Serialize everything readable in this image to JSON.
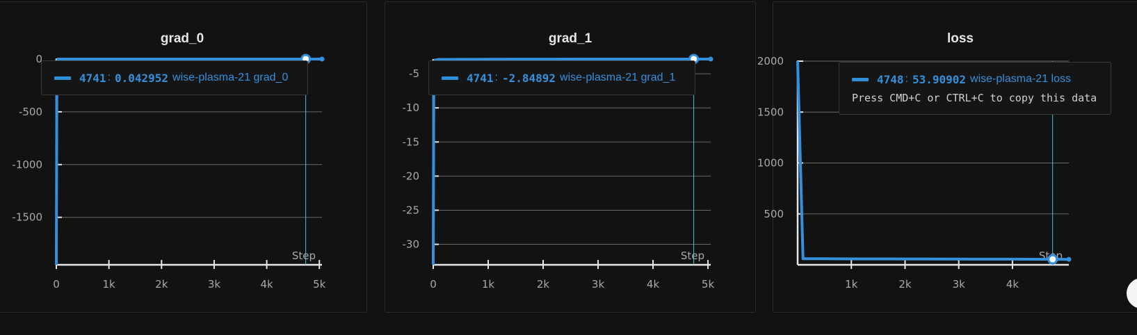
{
  "toolbar": {
    "icons": [
      "drag-handle-icon",
      "clipboard-icon",
      "share-icon",
      "edit-icon",
      "fullscreen-icon",
      "more-icon"
    ]
  },
  "panels": [
    {
      "title": "grad_0",
      "tooltip": {
        "step": "4741",
        "value": "0.042952",
        "run": "wise-plasma-21 grad_0",
        "hint": ""
      }
    },
    {
      "title": "grad_1",
      "tooltip": {
        "step": "4741",
        "value": "-2.84892",
        "run": "wise-plasma-21 grad_1",
        "hint": ""
      }
    },
    {
      "title": "loss",
      "tooltip": {
        "step": "4748",
        "value": "53.90902",
        "run": "wise-plasma-21 loss",
        "hint": "Press CMD+C or CTRL+C to copy this data"
      }
    }
  ],
  "chart_data": [
    {
      "type": "line",
      "title": "grad_0",
      "xlabel": "Step",
      "ylabel": "",
      "xlim": [
        0,
        5050
      ],
      "ylim": [
        -1950,
        0
      ],
      "xticks": [
        "0",
        "1k",
        "2k",
        "3k",
        "4k",
        "5k"
      ],
      "xtick_values": [
        0,
        1000,
        2000,
        3000,
        4000,
        5000
      ],
      "yticks": [
        "0",
        "-500",
        "-1000",
        "-1500"
      ],
      "ytick_values": [
        0,
        -500,
        -1000,
        -1500
      ],
      "hover_step": 4741,
      "hover_value": 0.042952,
      "series": [
        {
          "color": "#3590dc",
          "x": [
            0,
            10,
            30,
            100,
            1000,
            2000,
            3000,
            4000,
            4741,
            5050
          ],
          "y": [
            -1950,
            -60,
            0,
            0,
            0,
            0,
            0,
            0,
            0.042952,
            0
          ]
        }
      ]
    },
    {
      "type": "line",
      "title": "grad_1",
      "xlabel": "Step",
      "ylabel": "",
      "xlim": [
        0,
        5050
      ],
      "ylim": [
        -33,
        -2.85
      ],
      "xticks": [
        "0",
        "1k",
        "2k",
        "3k",
        "4k",
        "5k"
      ],
      "xtick_values": [
        0,
        1000,
        2000,
        3000,
        4000,
        5000
      ],
      "yticks": [
        "-5",
        "-10",
        "-15",
        "-20",
        "-25",
        "-30"
      ],
      "ytick_values": [
        -5,
        -10,
        -15,
        -20,
        -25,
        -30
      ],
      "hover_step": 4741,
      "hover_value": -2.84892,
      "series": [
        {
          "color": "#3590dc",
          "x": [
            0,
            10,
            30,
            100,
            1000,
            2000,
            3000,
            4000,
            4741,
            5050
          ],
          "y": [
            -33,
            -5,
            -3,
            -2.9,
            -2.87,
            -2.86,
            -2.855,
            -2.85,
            -2.84892,
            -2.848
          ]
        }
      ]
    },
    {
      "type": "line",
      "title": "loss",
      "xlabel": "Step",
      "ylabel": "",
      "xlim": [
        0,
        5050
      ],
      "ylim": [
        0,
        2000
      ],
      "xticks": [
        "1k",
        "2k",
        "3k",
        "4k"
      ],
      "xtick_values": [
        1000,
        2000,
        3000,
        4000
      ],
      "yticks": [
        "2000",
        "1500",
        "1000",
        "500"
      ],
      "ytick_values": [
        2000,
        1500,
        1000,
        500
      ],
      "hover_step": 4748,
      "hover_value": 53.90902,
      "series": [
        {
          "color": "#3590dc",
          "x": [
            0,
            100,
            500,
            1000,
            2000,
            3000,
            4000,
            4748,
            5050
          ],
          "y": [
            2000,
            60,
            60,
            58,
            57,
            56,
            55,
            53.90902,
            53.5
          ]
        }
      ]
    }
  ]
}
